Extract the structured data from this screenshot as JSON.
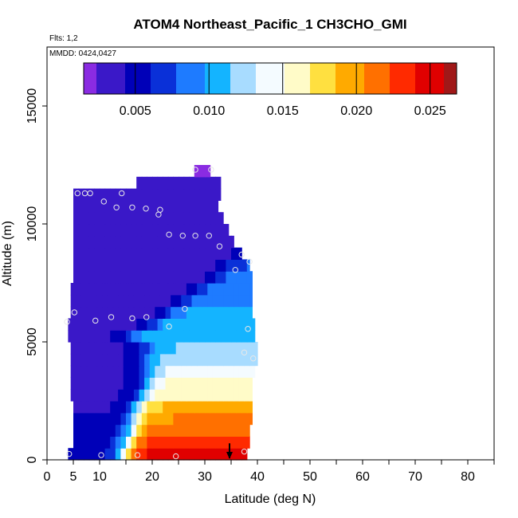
{
  "chart_data": {
    "type": "heatmap",
    "title": "ATOM4 Northeast_Pacific_1 CH3CHO_GMI",
    "flights_text": "Flts: 1,2",
    "dates_text": "MMDD: 0424,0427",
    "xlabel": "Latitude (deg N)",
    "ylabel": "Altitude (m)",
    "xlim": [
      0,
      85
    ],
    "ylim": [
      0,
      17500
    ],
    "x_ticks": [
      0,
      5,
      10,
      15,
      20,
      25,
      30,
      35,
      40,
      45,
      50,
      55,
      60,
      65,
      70,
      75,
      80,
      85
    ],
    "x_tick_labels": [
      "0",
      "5",
      "10",
      "20",
      "30",
      "40",
      "50",
      "60",
      "70",
      "80"
    ],
    "x_tick_label_positions": [
      0,
      5,
      10,
      20,
      30,
      40,
      50,
      60,
      70,
      80
    ],
    "y_ticks": [
      0,
      5000,
      10000,
      15000
    ],
    "y_tick_labels": [
      "0",
      "5000",
      "10000",
      "15000"
    ],
    "colorbar": {
      "range": [
        0.0015,
        0.0268
      ],
      "ticks": [
        0.005,
        0.01,
        0.015,
        0.02,
        0.025
      ],
      "tick_labels": [
        "0.005",
        "0.010",
        "0.015",
        "0.020",
        "0.025"
      ],
      "colors": [
        "#8a2be2",
        "#3a18c8",
        "#0000b8",
        "#0a30d8",
        "#1e7bff",
        "#14b4ff",
        "#a8dcff",
        "#f4fbff",
        "#fffbc8",
        "#ffe040",
        "#ffaa00",
        "#ff7000",
        "#ff2a00",
        "#e00000",
        "#a01818"
      ]
    },
    "altitude_bins_m": [
      250,
      750,
      1250,
      1750,
      2250,
      2750,
      3250,
      3750,
      4250,
      4750,
      5250,
      5750,
      6250,
      6750,
      7250,
      7750,
      8250,
      8750,
      9250,
      9750,
      10250,
      10750,
      11250,
      11750,
      12250
    ],
    "profile": {
      "left_bg": [
        0.0055,
        0.005,
        0.0045,
        0.0045,
        0.004,
        0.004,
        0.004,
        0.004,
        0.004,
        0.004,
        0.004,
        0.0035,
        0.0035,
        0.0035,
        0.0035,
        0.0035,
        0.0035,
        0.003,
        0.003,
        0.003,
        0.003,
        0.003,
        0.003,
        0.004,
        0.002
      ],
      "right_bg": [
        0.025,
        0.0235,
        0.0215,
        0.0205,
        0.019,
        0.0165,
        0.0155,
        0.014,
        0.0125,
        0.0115,
        0.011,
        0.0105,
        0.01,
        0.0095,
        0.009,
        0.0085,
        0.008,
        0.0075,
        0.007,
        0.0065,
        0.0055,
        0.005,
        0.004,
        0.004,
        0.002
      ],
      "transition_lat": [
        15,
        15.5,
        16,
        16.5,
        17,
        18,
        19,
        19,
        19,
        19,
        16,
        20,
        23,
        26,
        29,
        32,
        34,
        36,
        38,
        40,
        40,
        40,
        40,
        40,
        40
      ],
      "lat_min": [
        4,
        5,
        5,
        5,
        5,
        4.5,
        4.5,
        4.5,
        4.5,
        4.5,
        4,
        4,
        4.5,
        4.5,
        4.5,
        5,
        5,
        5,
        5,
        5,
        5,
        5,
        5,
        17,
        28
      ],
      "lat_max": [
        38,
        38.5,
        38.5,
        39,
        39,
        39,
        39,
        39.5,
        40,
        40,
        39.5,
        39.5,
        39,
        39,
        39,
        39,
        38.5,
        37,
        35.5,
        34.5,
        33.5,
        32.5,
        33,
        33,
        31
      ]
    },
    "flight_points": [
      {
        "lat": 3.8,
        "alt": 5850
      },
      {
        "lat": 5.2,
        "alt": 6250
      },
      {
        "lat": 4.2,
        "alt": 250
      },
      {
        "lat": 10.3,
        "alt": 200
      },
      {
        "lat": 17.2,
        "alt": 200
      },
      {
        "lat": 24.5,
        "alt": 150
      },
      {
        "lat": 37.5,
        "alt": 350
      },
      {
        "lat": 37.5,
        "alt": 4550
      },
      {
        "lat": 39.2,
        "alt": 4300
      },
      {
        "lat": 38.2,
        "alt": 5550
      },
      {
        "lat": 9.2,
        "alt": 5900
      },
      {
        "lat": 12.2,
        "alt": 6050
      },
      {
        "lat": 16.2,
        "alt": 6000
      },
      {
        "lat": 18.9,
        "alt": 6050
      },
      {
        "lat": 23.2,
        "alt": 5650
      },
      {
        "lat": 26.2,
        "alt": 6400
      },
      {
        "lat": 35.8,
        "alt": 8050
      },
      {
        "lat": 37.0,
        "alt": 8700
      },
      {
        "lat": 38.5,
        "alt": 8400
      },
      {
        "lat": 32.8,
        "alt": 9050
      },
      {
        "lat": 23.2,
        "alt": 9550
      },
      {
        "lat": 25.8,
        "alt": 9500
      },
      {
        "lat": 28.2,
        "alt": 9500
      },
      {
        "lat": 30.8,
        "alt": 9500
      },
      {
        "lat": 21.2,
        "alt": 10400
      },
      {
        "lat": 21.5,
        "alt": 10600
      },
      {
        "lat": 18.8,
        "alt": 10650
      },
      {
        "lat": 16.2,
        "alt": 10700
      },
      {
        "lat": 13.2,
        "alt": 10700
      },
      {
        "lat": 10.8,
        "alt": 10950
      },
      {
        "lat": 5.8,
        "alt": 11300
      },
      {
        "lat": 7.2,
        "alt": 11300
      },
      {
        "lat": 8.2,
        "alt": 11300
      },
      {
        "lat": 14.2,
        "alt": 11300
      },
      {
        "lat": 28.2,
        "alt": 12300
      },
      {
        "lat": 31.2,
        "alt": 12300
      }
    ],
    "arrow": {
      "lat": 34.7,
      "alt_from": 700,
      "alt_to": 0
    }
  }
}
